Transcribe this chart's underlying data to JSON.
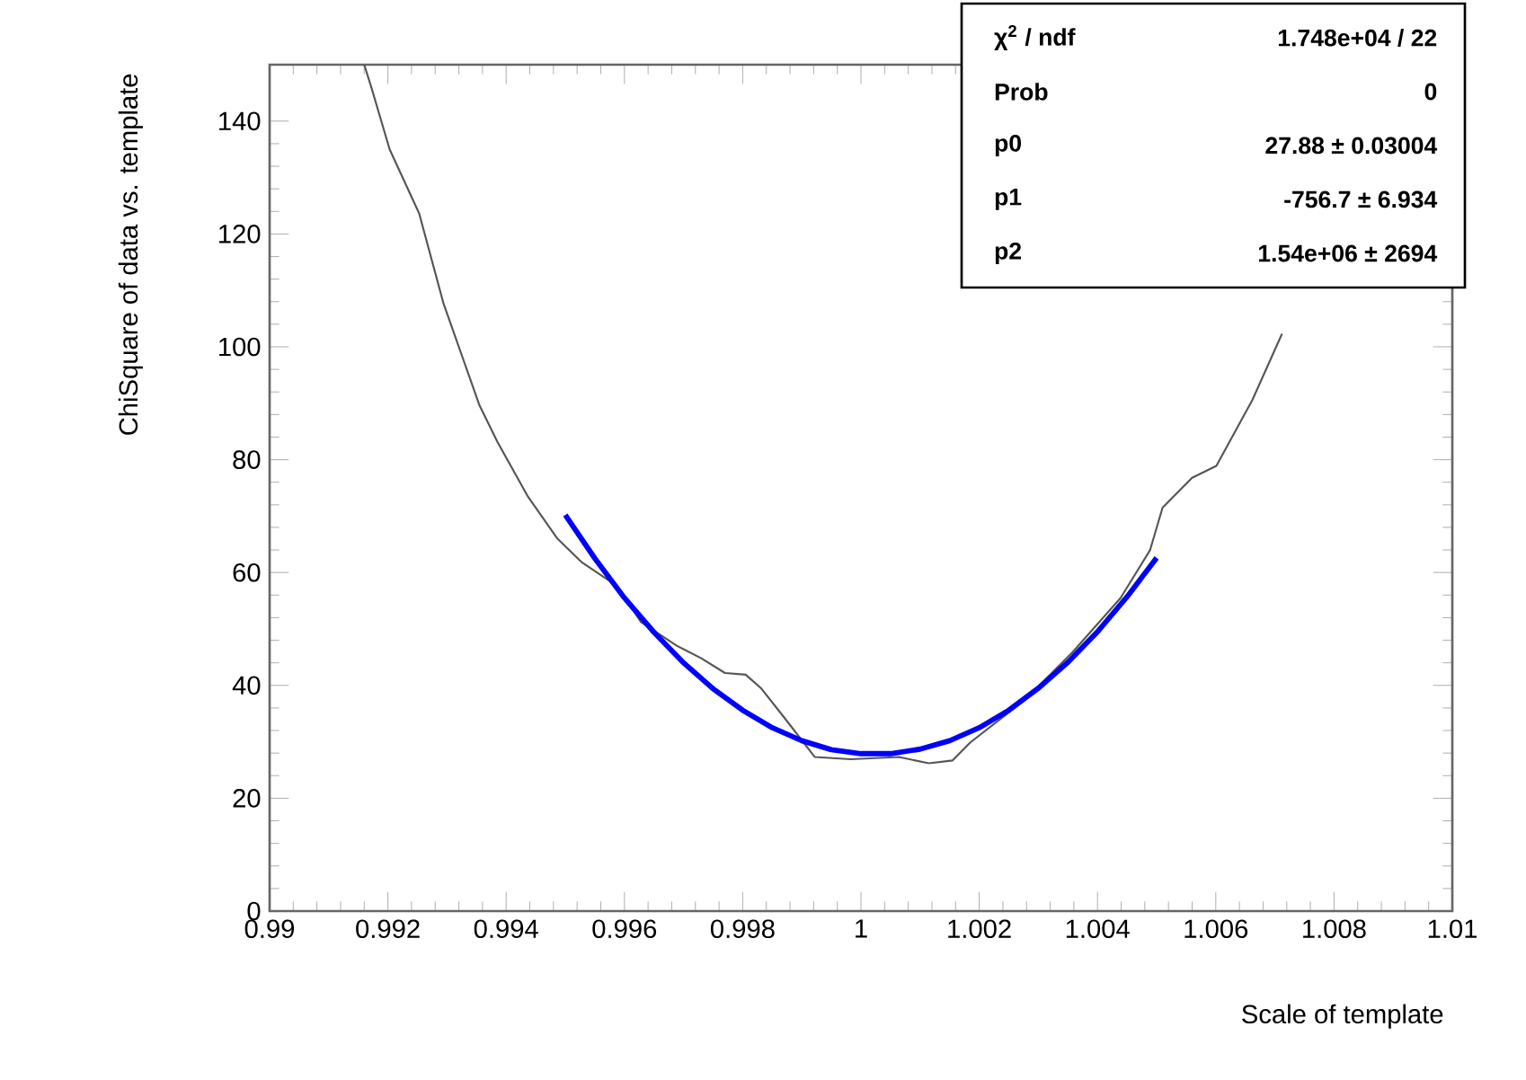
{
  "chart_data": {
    "type": "line",
    "xlabel": "Scale of template",
    "ylabel": "ChiSquare of data vs. template",
    "xlim": [
      0.99,
      1.01
    ],
    "ylim": [
      0,
      150
    ],
    "xticks": [
      0.99,
      0.992,
      0.994,
      0.996,
      0.998,
      1,
      1.002,
      1.004,
      1.006,
      1.008,
      1.01
    ],
    "yticks": [
      0,
      20,
      40,
      60,
      80,
      100,
      120,
      140
    ],
    "grid": false,
    "marker": "none",
    "annotations": [
      "χ$^{2}$ / ndf",
      "1.748e+04 / 22",
      "Prob",
      "0",
      "p0",
      "27.88 ± 0.03004",
      "p1",
      "-756.7 ± 6.934",
      "p2",
      "1.54e+06 ± 2694"
    ],
    "series": [
      {
        "color": "#555555",
        "line_style": "solid",
        "x": [
          0.9916,
          0.99172,
          0.99203,
          0.99253,
          0.99294,
          0.99355,
          0.99385,
          0.99436,
          0.99486,
          0.99527,
          0.99588,
          0.99628,
          0.99689,
          0.9973,
          0.9977,
          0.99805,
          0.99831,
          0.99871,
          0.99922,
          0.99983,
          1.00064,
          1.00115,
          1.00155,
          1.00185,
          1.00277,
          1.00358,
          1.00439,
          1.00489,
          1.0051,
          1.0056,
          1.00601,
          1.00662,
          1.00712
        ],
        "values": [
          150,
          146,
          135,
          123.6,
          107.7,
          89.6,
          83.2,
          73.6,
          66.1,
          61.9,
          57.6,
          51.2,
          47.0,
          44.8,
          42.2,
          41.9,
          39.5,
          34.2,
          27.3,
          26.9,
          27.3,
          26.2,
          26.7,
          29.9,
          37.4,
          45.9,
          55.5,
          64.0,
          71.5,
          76.8,
          78.9,
          90.6,
          102.3
        ]
      },
      {
        "color": "#0000ff",
        "line_style": "solid",
        "x": [
          0.995,
          0.9955,
          0.996,
          0.9965,
          0.997,
          0.9975,
          0.998,
          0.9985,
          0.999,
          0.9995,
          1.0,
          1.0005,
          1.001,
          1.0015,
          1.002,
          1.0025,
          1.003,
          1.0035,
          1.004,
          1.0045,
          1.005
        ],
        "values": [
          70.2,
          62.5,
          55.5,
          49.4,
          44.0,
          39.4,
          35.6,
          32.5,
          30.2,
          28.6,
          27.9,
          27.9,
          28.7,
          30.2,
          32.5,
          35.6,
          39.5,
          44.1,
          49.5,
          55.7,
          62.6
        ]
      }
    ]
  }
}
